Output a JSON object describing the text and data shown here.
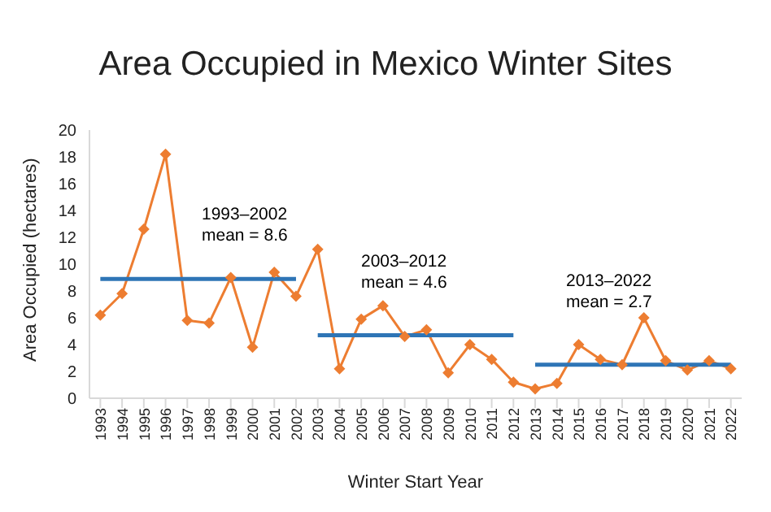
{
  "chart_data": {
    "type": "line",
    "title": "Area Occupied in Mexico Winter Sites",
    "xlabel": "Winter Start Year",
    "ylabel": "Area Occupied (hectares)",
    "x": [
      1993,
      1994,
      1995,
      1996,
      1997,
      1998,
      1999,
      2000,
      2001,
      2002,
      2003,
      2004,
      2005,
      2006,
      2007,
      2008,
      2009,
      2010,
      2011,
      2012,
      2013,
      2014,
      2015,
      2016,
      2017,
      2018,
      2019,
      2020,
      2021,
      2022
    ],
    "series": [
      {
        "color": "#ed7d31",
        "marker": "diamond",
        "values": [
          6.2,
          7.8,
          12.6,
          18.2,
          5.8,
          5.6,
          9.0,
          3.8,
          9.4,
          7.6,
          11.1,
          2.2,
          5.9,
          6.9,
          4.6,
          5.1,
          1.9,
          4.0,
          2.9,
          1.2,
          0.7,
          1.1,
          4.0,
          2.9,
          2.5,
          6.0,
          2.8,
          2.1,
          2.8,
          2.2
        ]
      },
      {
        "type": "line",
        "color": "#2e75b6",
        "marker": "none",
        "x": [
          1993,
          2002
        ],
        "values": [
          8.9,
          8.9
        ]
      },
      {
        "type": "line",
        "color": "#2e75b6",
        "marker": "none",
        "x": [
          2003,
          2012
        ],
        "values": [
          4.7,
          4.7
        ]
      },
      {
        "type": "line",
        "color": "#2e75b6",
        "marker": "none",
        "x": [
          2013,
          2022
        ],
        "values": [
          2.5,
          2.5
        ]
      }
    ],
    "annotations": [
      "1993–2002\nmean = 8.6",
      "2003–2012\nmean = 4.6",
      "2013–2022\nmean = 2.7"
    ],
    "xlim": [
      1992.5,
      2022.5
    ],
    "xticks": [
      1993,
      1994,
      1995,
      1996,
      1997,
      1998,
      1999,
      2000,
      2001,
      2002,
      2003,
      2004,
      2005,
      2006,
      2007,
      2008,
      2009,
      2010,
      2011,
      2012,
      2013,
      2014,
      2015,
      2016,
      2017,
      2018,
      2019,
      2020,
      2021,
      2022
    ],
    "ylim": [
      0,
      20
    ],
    "yticks": [
      0,
      2,
      4,
      6,
      8,
      10,
      12,
      14,
      16,
      18,
      20
    ],
    "grid": false,
    "legend": false,
    "line_style": "solid"
  }
}
